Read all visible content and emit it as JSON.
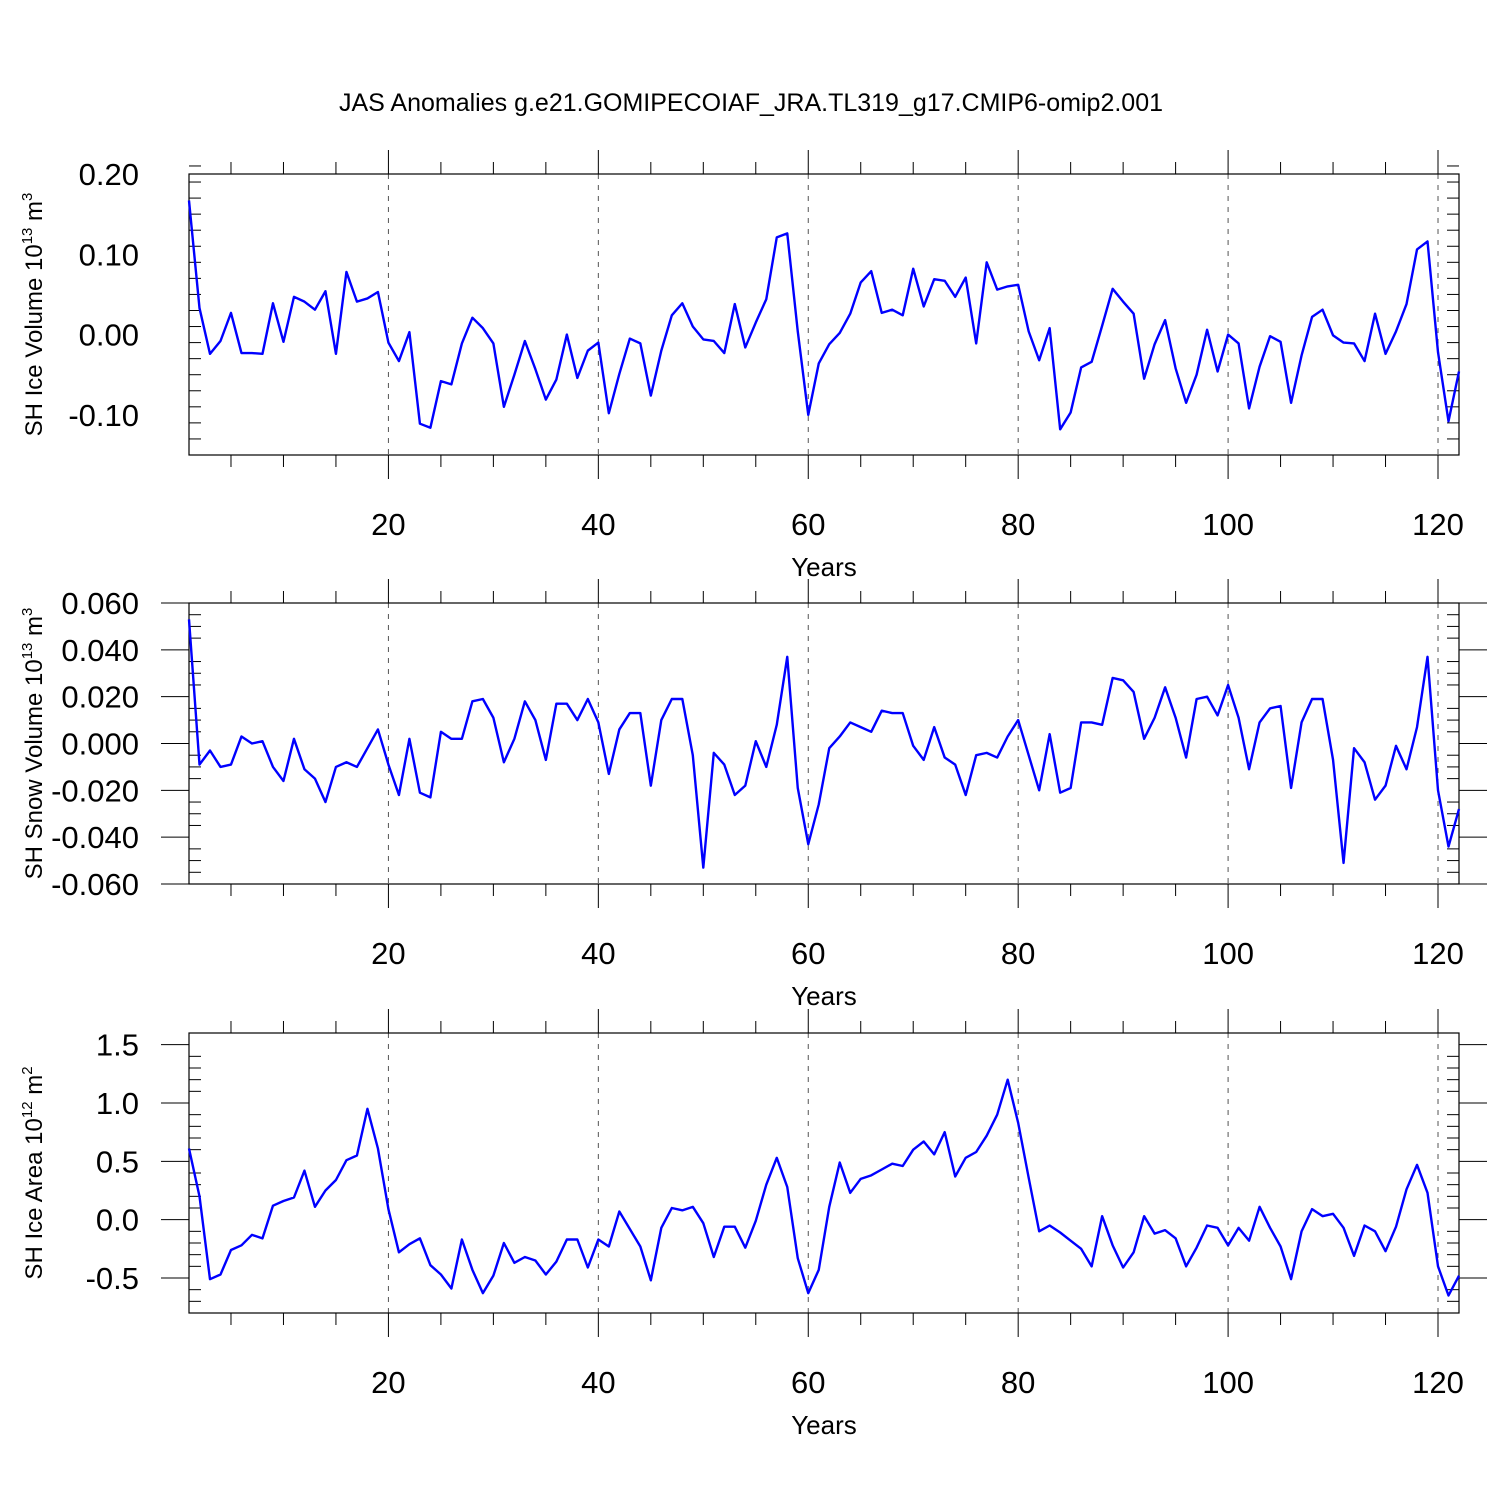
{
  "title": "JAS Anomalies g.e21.GOMIPECOIAF_JRA.TL319_g17.CMIP6-omip2.001",
  "line_color": "#0000ff",
  "chart_data": [
    {
      "type": "line",
      "xlabel": "Years",
      "ylabel_text": "SH Ice Volume 10",
      "ylabel_exp": "13",
      "ylabel_unit": " m",
      "ylabel_unit_exp": "3",
      "xlim": [
        1,
        122
      ],
      "ylim": [
        -0.15,
        0.2
      ],
      "xticks": [
        20,
        40,
        60,
        80,
        100,
        120
      ],
      "xtick_labels": [
        "20",
        "40",
        "60",
        "80",
        "100",
        "120"
      ],
      "yticks": [
        -0.1,
        0.0,
        0.1,
        0.2
      ],
      "ytick_labels": [
        "-0.10",
        "0.00",
        "0.10",
        "0.20"
      ],
      "yminor_step": 0.02,
      "series": [
        {
          "name": "SH Ice Volume",
          "values": [
            0.167,
            0.033,
            -0.024,
            -0.008,
            0.027,
            -0.023,
            -0.023,
            -0.024,
            0.039,
            -0.009,
            0.047,
            0.041,
            0.031,
            0.054,
            -0.024,
            0.078,
            0.041,
            0.045,
            0.053,
            -0.01,
            -0.033,
            0.003,
            -0.111,
            -0.116,
            -0.058,
            -0.062,
            -0.011,
            0.021,
            0.008,
            -0.011,
            -0.09,
            -0.05,
            -0.008,
            -0.043,
            -0.081,
            -0.056,
            0.0,
            -0.054,
            -0.02,
            -0.01,
            -0.098,
            -0.049,
            -0.005,
            -0.011,
            -0.076,
            -0.02,
            0.024,
            0.039,
            0.01,
            -0.006,
            -0.008,
            -0.023,
            0.038,
            -0.016,
            0.015,
            0.044,
            0.121,
            0.126,
            0.004,
            -0.1,
            -0.036,
            -0.012,
            0.002,
            0.026,
            0.065,
            0.079,
            0.027,
            0.031,
            0.024,
            0.082,
            0.035,
            0.069,
            0.067,
            0.047,
            0.071,
            -0.011,
            0.09,
            0.056,
            0.06,
            0.062,
            0.004,
            -0.032,
            0.008,
            -0.118,
            -0.097,
            -0.041,
            -0.034,
            0.011,
            0.057,
            0.041,
            0.026,
            -0.055,
            -0.012,
            0.018,
            -0.042,
            -0.085,
            -0.05,
            0.006,
            -0.046,
            0.0,
            -0.011,
            -0.092,
            -0.04,
            -0.002,
            -0.009,
            -0.085,
            -0.026,
            0.022,
            0.031,
            -0.001,
            -0.01,
            -0.011,
            -0.033,
            0.026,
            -0.024,
            0.004,
            0.038,
            0.106,
            0.116,
            -0.022,
            -0.108,
            -0.046
          ]
        }
      ]
    },
    {
      "type": "line",
      "xlabel": "Years",
      "ylabel_text": "SH Snow Volume 10",
      "ylabel_exp": "13",
      "ylabel_unit": " m",
      "ylabel_unit_exp": "3",
      "xlim": [
        1,
        122
      ],
      "ylim": [
        -0.06,
        0.06
      ],
      "xticks": [
        20,
        40,
        60,
        80,
        100,
        120
      ],
      "xtick_labels": [
        "20",
        "40",
        "60",
        "80",
        "100",
        "120"
      ],
      "yticks": [
        -0.06,
        -0.04,
        -0.02,
        0.0,
        0.02,
        0.04,
        0.06
      ],
      "ytick_labels": [
        "-0.060",
        "-0.040",
        "-0.020",
        "0.000",
        "0.020",
        "0.040",
        "0.060"
      ],
      "yminor_step": 0.005,
      "series": [
        {
          "name": "SH Snow Volume",
          "values": [
            0.053,
            -0.009,
            -0.003,
            -0.01,
            -0.009,
            0.003,
            0.0,
            0.001,
            -0.01,
            -0.016,
            0.002,
            -0.011,
            -0.015,
            -0.025,
            -0.01,
            -0.008,
            -0.01,
            -0.002,
            0.006,
            -0.009,
            -0.022,
            0.002,
            -0.021,
            -0.023,
            0.005,
            0.002,
            0.002,
            0.018,
            0.019,
            0.011,
            -0.008,
            0.002,
            0.018,
            0.01,
            -0.007,
            0.017,
            0.017,
            0.01,
            0.019,
            0.009,
            -0.013,
            0.006,
            0.013,
            0.013,
            -0.018,
            0.01,
            0.019,
            0.019,
            -0.005,
            -0.053,
            -0.004,
            -0.009,
            -0.022,
            -0.018,
            0.001,
            -0.01,
            0.008,
            0.037,
            -0.019,
            -0.043,
            -0.026,
            -0.002,
            0.003,
            0.009,
            0.007,
            0.005,
            0.014,
            0.013,
            0.013,
            -0.001,
            -0.007,
            0.007,
            -0.006,
            -0.009,
            -0.022,
            -0.005,
            -0.004,
            -0.006,
            0.003,
            0.01,
            -0.005,
            -0.02,
            0.004,
            -0.021,
            -0.019,
            0.009,
            0.009,
            0.008,
            0.028,
            0.027,
            0.022,
            0.002,
            0.011,
            0.024,
            0.011,
            -0.006,
            0.019,
            0.02,
            0.012,
            0.025,
            0.011,
            -0.011,
            0.009,
            0.015,
            0.016,
            -0.019,
            0.009,
            0.019,
            0.019,
            -0.007,
            -0.051,
            -0.002,
            -0.008,
            -0.024,
            -0.018,
            -0.001,
            -0.011,
            0.007,
            0.037,
            -0.02,
            -0.044,
            -0.028
          ]
        }
      ]
    },
    {
      "type": "line",
      "xlabel": "Years",
      "ylabel_text": "SH Ice Area 10",
      "ylabel_exp": "12",
      "ylabel_unit": " m",
      "ylabel_unit_exp": "2",
      "xlim": [
        1,
        122
      ],
      "ylim": [
        -0.8,
        1.6
      ],
      "xticks": [
        20,
        40,
        60,
        80,
        100,
        120
      ],
      "xtick_labels": [
        "20",
        "40",
        "60",
        "80",
        "100",
        "120"
      ],
      "yticks": [
        -0.5,
        0.0,
        0.5,
        1.0,
        1.5
      ],
      "ytick_labels": [
        "-0.5",
        "0.0",
        "0.5",
        "1.0",
        "1.5"
      ],
      "yminor_step": 0.1,
      "series": [
        {
          "name": "SH Ice Area",
          "values": [
            0.61,
            0.2,
            -0.51,
            -0.47,
            -0.26,
            -0.22,
            -0.13,
            -0.16,
            0.12,
            0.16,
            0.19,
            0.42,
            0.11,
            0.25,
            0.34,
            0.51,
            0.55,
            0.95,
            0.61,
            0.09,
            -0.28,
            -0.21,
            -0.16,
            -0.39,
            -0.47,
            -0.59,
            -0.17,
            -0.43,
            -0.63,
            -0.48,
            -0.2,
            -0.37,
            -0.32,
            -0.35,
            -0.47,
            -0.36,
            -0.17,
            -0.17,
            -0.41,
            -0.17,
            -0.23,
            0.07,
            -0.08,
            -0.23,
            -0.52,
            -0.07,
            0.1,
            0.08,
            0.11,
            -0.03,
            -0.32,
            -0.06,
            -0.06,
            -0.24,
            -0.01,
            0.3,
            0.53,
            0.28,
            -0.33,
            -0.63,
            -0.43,
            0.11,
            0.49,
            0.23,
            0.35,
            0.38,
            0.43,
            0.48,
            0.46,
            0.6,
            0.67,
            0.56,
            0.75,
            0.37,
            0.53,
            0.58,
            0.72,
            0.9,
            1.2,
            0.83,
            0.36,
            -0.1,
            -0.05,
            -0.11,
            -0.18,
            -0.25,
            -0.4,
            0.03,
            -0.22,
            -0.41,
            -0.28,
            0.03,
            -0.12,
            -0.09,
            -0.16,
            -0.4,
            -0.24,
            -0.05,
            -0.07,
            -0.22,
            -0.07,
            -0.18,
            0.11,
            -0.07,
            -0.23,
            -0.51,
            -0.1,
            0.09,
            0.03,
            0.05,
            -0.07,
            -0.31,
            -0.05,
            -0.1,
            -0.27,
            -0.06,
            0.26,
            0.47,
            0.23,
            -0.4,
            -0.65,
            -0.48
          ]
        }
      ]
    }
  ]
}
